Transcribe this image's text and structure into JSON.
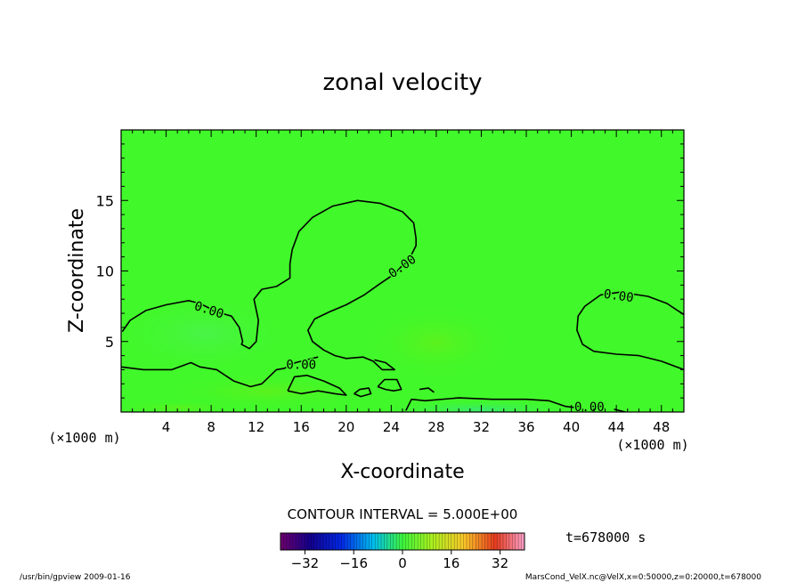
{
  "chart_data": {
    "type": "heatmap",
    "title": "zonal velocity",
    "xlabel": "X-coordinate",
    "ylabel": "Z-coordinate",
    "x_unit_left": "(×1000 m)",
    "x_unit_right": "(×1000 m)",
    "xlim": [
      0,
      50
    ],
    "ylim": [
      0,
      20
    ],
    "x_ticks": [
      4,
      8,
      12,
      16,
      20,
      24,
      28,
      32,
      36,
      40,
      44,
      48
    ],
    "y_ticks": [
      5,
      10,
      15
    ],
    "contour_interval_text": "CONTOUR INTERVAL = 5.000E+00",
    "time_text": "t=678000 s",
    "colorbar": {
      "min": -40,
      "max": 40,
      "ticks": [
        -32,
        -16,
        0,
        16,
        32
      ]
    },
    "contour_labels": [
      {
        "text": "0.00",
        "x": 7.8,
        "y": 7.2,
        "angle": 18
      },
      {
        "text": "0.00",
        "x": 25.0,
        "y": 10.3,
        "angle": -35
      },
      {
        "text": "0.00",
        "x": 16.0,
        "y": 3.3,
        "angle": 0
      },
      {
        "text": "0.00",
        "x": 44.2,
        "y": 8.2,
        "angle": 8
      },
      {
        "text": "0.00",
        "x": 41.6,
        "y": 0.3,
        "angle": 0
      }
    ],
    "contour_zero_lines": [
      [
        [
          0.1,
          5.7
        ],
        [
          0.8,
          6.5
        ],
        [
          2.2,
          7.2
        ],
        [
          4.0,
          7.6
        ],
        [
          6.0,
          7.9
        ],
        [
          7.0,
          7.7
        ],
        [
          8.5,
          7.1
        ],
        [
          9.8,
          6.8
        ],
        [
          10.5,
          6.0
        ],
        [
          10.8,
          5.0
        ],
        [
          10.7,
          4.8
        ],
        [
          11.4,
          4.5
        ],
        [
          12.0,
          5.0
        ],
        [
          12.2,
          6.5
        ],
        [
          11.8,
          8.0
        ],
        [
          12.5,
          8.7
        ],
        [
          13.8,
          8.9
        ],
        [
          15.0,
          9.5
        ],
        [
          15.0,
          10.5
        ],
        [
          15.2,
          11.5
        ],
        [
          15.8,
          12.8
        ],
        [
          17.0,
          13.8
        ],
        [
          18.8,
          14.6
        ],
        [
          21.0,
          15.0
        ],
        [
          23.0,
          14.8
        ],
        [
          25.0,
          14.2
        ],
        [
          26.0,
          13.4
        ],
        [
          26.2,
          12.3
        ],
        [
          26.2,
          11.8
        ],
        [
          25.7,
          11.0
        ],
        [
          24.3,
          9.8
        ],
        [
          23.0,
          9.1
        ],
        [
          21.6,
          8.3
        ],
        [
          20.0,
          7.6
        ],
        [
          18.5,
          7.1
        ],
        [
          17.2,
          6.6
        ],
        [
          16.6,
          5.8
        ],
        [
          17.0,
          5.0
        ],
        [
          18.0,
          4.4
        ],
        [
          19.0,
          4.0
        ],
        [
          20.0,
          3.8
        ],
        [
          21.5,
          3.9
        ],
        [
          22.4,
          3.6
        ],
        [
          23.2,
          3.0
        ],
        [
          24.3,
          3.0
        ],
        [
          23.5,
          3.5
        ],
        [
          22.5,
          3.7
        ]
      ],
      [
        [
          0.0,
          3.2
        ],
        [
          2.0,
          3.0
        ],
        [
          4.5,
          3.0
        ],
        [
          6.2,
          3.5
        ],
        [
          7.0,
          3.2
        ],
        [
          8.5,
          3.0
        ],
        [
          10.0,
          2.2
        ],
        [
          11.5,
          1.8
        ],
        [
          12.5,
          2.0
        ],
        [
          13.8,
          3.0
        ],
        [
          14.5,
          3.1
        ],
        [
          15.5,
          3.5
        ],
        [
          17.5,
          3.9
        ]
      ],
      [
        [
          14.8,
          1.5
        ],
        [
          15.4,
          2.5
        ],
        [
          16.5,
          2.6
        ],
        [
          18.0,
          2.2
        ],
        [
          19.4,
          1.7
        ],
        [
          20.0,
          1.2
        ],
        [
          19.0,
          1.3
        ],
        [
          17.5,
          1.5
        ],
        [
          16.0,
          1.3
        ],
        [
          14.8,
          1.5
        ]
      ],
      [
        [
          20.7,
          1.3
        ],
        [
          21.2,
          1.6
        ],
        [
          22.0,
          1.7
        ],
        [
          22.2,
          1.3
        ],
        [
          21.3,
          1.1
        ],
        [
          20.7,
          1.3
        ]
      ],
      [
        [
          22.8,
          1.8
        ],
        [
          23.4,
          2.3
        ],
        [
          24.5,
          2.3
        ],
        [
          24.9,
          1.6
        ],
        [
          24.2,
          1.5
        ],
        [
          23.5,
          1.6
        ],
        [
          22.8,
          1.8
        ]
      ],
      [
        [
          26.5,
          1.6
        ],
        [
          27.3,
          1.7
        ],
        [
          27.8,
          1.4
        ]
      ],
      [
        [
          25.3,
          0.1
        ],
        [
          25.8,
          0.9
        ],
        [
          27.0,
          0.8
        ],
        [
          30.0,
          1.0
        ],
        [
          33.0,
          0.9
        ],
        [
          36.0,
          0.9
        ],
        [
          38.0,
          0.8
        ],
        [
          39.5,
          0.4
        ],
        [
          40.5,
          0.3
        ]
      ],
      [
        [
          43.8,
          0.2
        ],
        [
          44.8,
          0.0
        ]
      ],
      [
        [
          50.0,
          6.9
        ],
        [
          48.5,
          7.7
        ],
        [
          46.8,
          8.2
        ],
        [
          44.3,
          8.5
        ],
        [
          42.6,
          8.3
        ],
        [
          41.2,
          7.5
        ],
        [
          40.6,
          6.8
        ],
        [
          40.5,
          5.8
        ],
        [
          41.0,
          4.8
        ],
        [
          42.0,
          4.3
        ],
        [
          44.0,
          4.1
        ],
        [
          46.0,
          4.0
        ],
        [
          48.0,
          3.6
        ],
        [
          50.0,
          3.0
        ]
      ]
    ],
    "colors": {
      "field_base": "#41f82a",
      "field_light": "#49f548",
      "field_teal": "#35e870",
      "field_lime": "#5ff11e",
      "contour": "#000000"
    }
  },
  "footer": {
    "left": "/usr/bin/gpview   2009-01-16",
    "right": "MarsCond_VelX.nc@VelX,x=0:50000,z=0:20000,t=678000"
  }
}
